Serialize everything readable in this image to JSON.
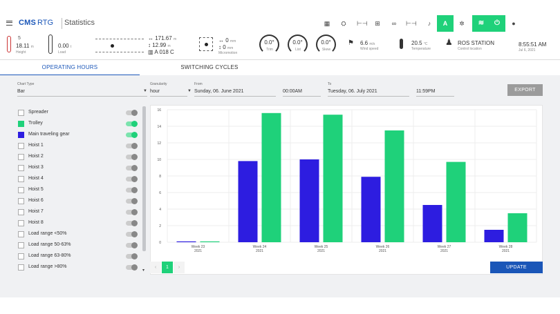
{
  "app": {
    "logo": "CMS",
    "product": "RTG",
    "page_title": "Statistics"
  },
  "toolbar": {
    "icons": [
      "grid-icon",
      "crane-icon",
      "spreader-icon",
      "trolley-icon",
      "gantry-icon",
      "bridge-icon",
      "bell-icon",
      "auto-mode",
      "gear-icon",
      "wifi-icon",
      "power-icon",
      "user-icon"
    ],
    "auto_label": "A",
    "accent": "#1fd17a"
  },
  "telemetry": {
    "height_value": "18.11",
    "height_unit": "m",
    "height_label": "Height",
    "height_top_digit": "5",
    "load_value": "0.00",
    "load_unit": "t",
    "load_label": "Load",
    "pos_x": "171.67",
    "pos_x_unit": "m",
    "pos_y": "12.99",
    "pos_y_unit": "m",
    "block": "A 018 C",
    "micro_x": "0",
    "micro_x_unit": "mm",
    "micro_y": "0",
    "micro_y_unit": "mm",
    "micro_label": "Micromotion",
    "trim_value": "0.0°",
    "trim_label": "Trim",
    "list_value": "0.0°",
    "list_label": "List",
    "skew_value": "0.0°",
    "skew_label": "Skew",
    "wind_value": "6.6",
    "wind_unit": "m/s",
    "wind_label": "Wind speed",
    "temp_value": "20.5",
    "temp_unit": "°C",
    "temp_label": "Temperature",
    "station": "ROS STATION",
    "station_label": "Control location",
    "time": "8:55:51 AM",
    "date": "Jul 6, 2021"
  },
  "tabs": [
    {
      "label": "OPERATING HOURS",
      "active": true
    },
    {
      "label": "SWITCHING CYCLES",
      "active": false
    }
  ],
  "filters": {
    "chart_type_label": "Chart Type",
    "chart_type_value": "Bar",
    "granularity_label": "Granularity",
    "granularity_value": "hour",
    "from_label": "From",
    "from_date": "Sunday, 06. June 2021",
    "from_time": "00:00AM",
    "to_label": "To",
    "to_date": "Tuesday, 06. July 2021",
    "to_time": "11:59PM",
    "export_label": "EXPORT"
  },
  "series_list": [
    {
      "label": "Spreader",
      "checked": false,
      "color": "",
      "on": false
    },
    {
      "label": "Trolley",
      "checked": true,
      "color": "#1fd17a",
      "on": true
    },
    {
      "label": "Main traveling gear",
      "checked": true,
      "color": "#2d1de0",
      "on": true
    },
    {
      "label": "Hoist 1",
      "checked": false,
      "color": "",
      "on": false
    },
    {
      "label": "Hoist 2",
      "checked": false,
      "color": "",
      "on": false
    },
    {
      "label": "Hoist 3",
      "checked": false,
      "color": "",
      "on": false
    },
    {
      "label": "Hoist 4",
      "checked": false,
      "color": "",
      "on": false
    },
    {
      "label": "Hoist 5",
      "checked": false,
      "color": "",
      "on": false
    },
    {
      "label": "Hoist 6",
      "checked": false,
      "color": "",
      "on": false
    },
    {
      "label": "Hoist 7",
      "checked": false,
      "color": "",
      "on": false
    },
    {
      "label": "Hoist 8",
      "checked": false,
      "color": "",
      "on": false
    },
    {
      "label": "Load range <50%",
      "checked": false,
      "color": "",
      "on": false
    },
    {
      "label": "Load range 50-63%",
      "checked": false,
      "color": "",
      "on": false
    },
    {
      "label": "Load range 63-80%",
      "checked": false,
      "color": "",
      "on": false
    },
    {
      "label": "Load range >80%",
      "checked": false,
      "color": "",
      "on": false
    }
  ],
  "chart_data": {
    "type": "bar",
    "categories": [
      {
        "line1": "Week 23",
        "line2": "2021"
      },
      {
        "line1": "Week 24",
        "line2": "2021"
      },
      {
        "line1": "Week 25",
        "line2": "2021"
      },
      {
        "line1": "Week 26",
        "line2": "2021"
      },
      {
        "line1": "Week 27",
        "line2": "2021"
      },
      {
        "line1": "Week 28",
        "line2": "2021"
      }
    ],
    "series": [
      {
        "color": "#2d1de0",
        "values": [
          0.1,
          9.8,
          10.0,
          7.9,
          4.5,
          1.5
        ]
      },
      {
        "color": "#1fd17a",
        "values": [
          0.1,
          15.6,
          15.4,
          13.5,
          9.7,
          3.5
        ]
      }
    ],
    "yticks": [
      0,
      2,
      4,
      6,
      8,
      10,
      12,
      14,
      16
    ],
    "ylim": [
      0,
      16
    ],
    "grid": true
  },
  "pager": {
    "prev": "‹",
    "page": "1",
    "next": "›"
  },
  "update_label": "UPDATE"
}
